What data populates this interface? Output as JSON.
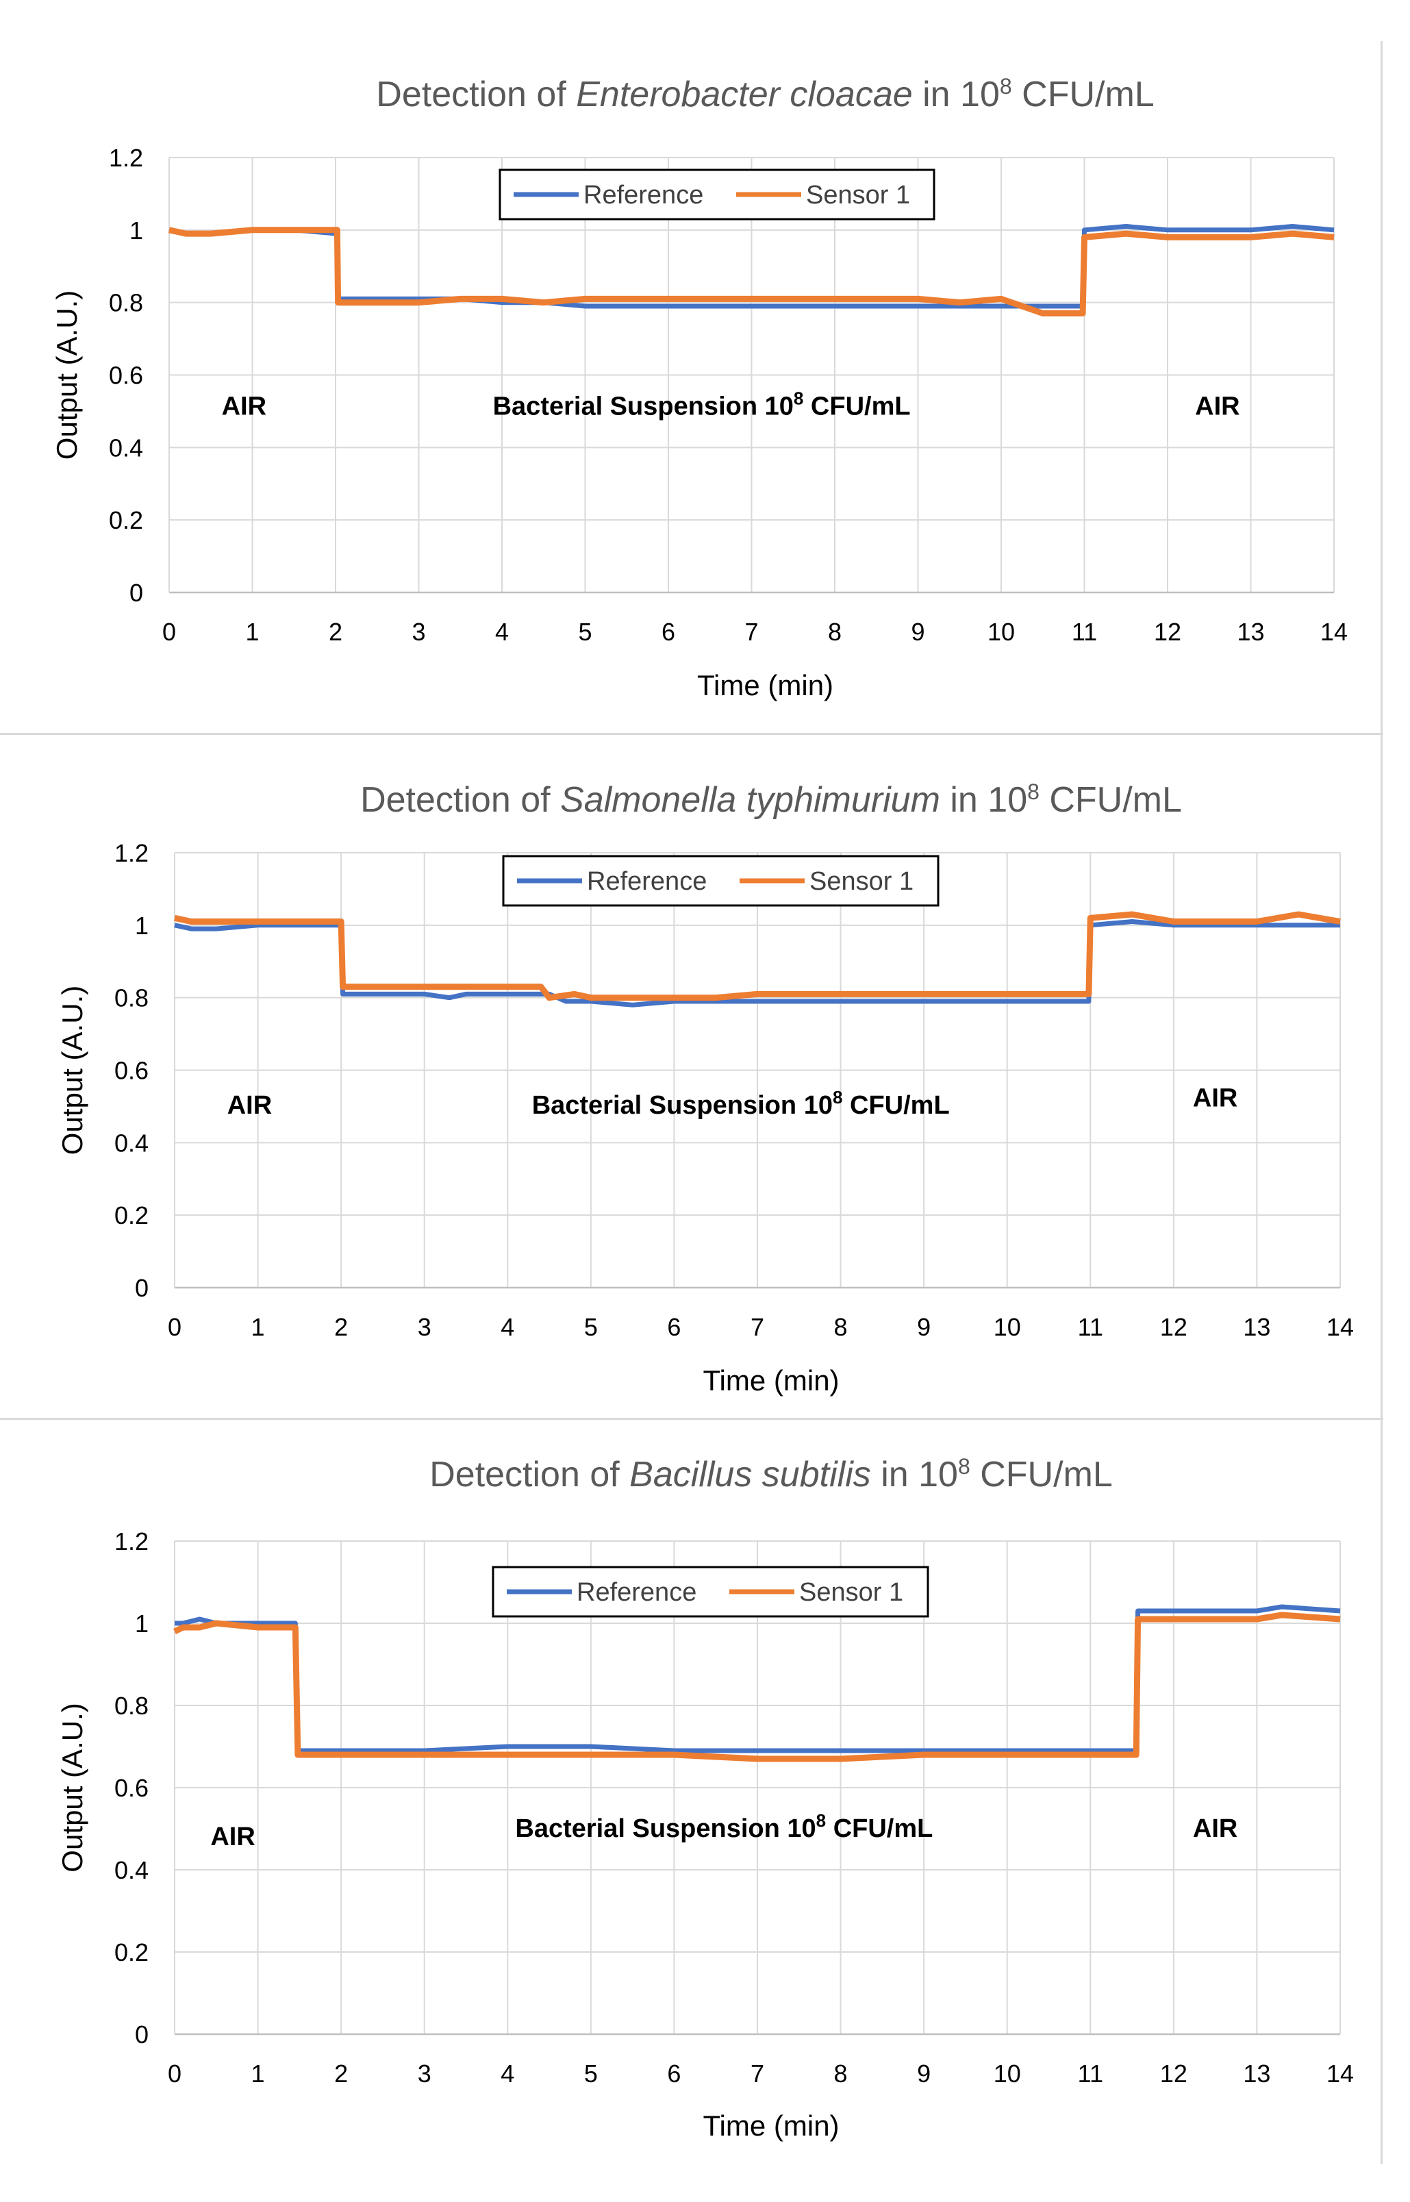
{
  "colors": {
    "reference": "#4472C4",
    "sensor": "#ED7D31",
    "grid": "#d9d9d9",
    "axis": "#bfbfbf"
  },
  "chart_data": [
    {
      "type": "line",
      "title": {
        "prefix": "Detection of ",
        "organism": "Enterobacter cloacae",
        "mid": " in 10",
        "exp": "8",
        "suffix": " CFU/mL"
      },
      "xlabel": "Time (min)",
      "ylabel": "Output (A.U.)",
      "xlim": [
        0,
        14
      ],
      "ylim": [
        0,
        1.2
      ],
      "xticks": [
        0,
        1,
        2,
        3,
        4,
        5,
        6,
        7,
        8,
        9,
        10,
        11,
        12,
        13,
        14
      ],
      "yticks": [
        0,
        0.2,
        0.4,
        0.6,
        0.8,
        1,
        1.2
      ],
      "ytick_labels": [
        "0",
        "0.2",
        "0.4",
        "0.6",
        "0.8",
        "1",
        "1.2"
      ],
      "legend": {
        "position": "top-center",
        "entries": [
          "Reference",
          "Sensor 1"
        ]
      },
      "annotations": [
        {
          "text": "AIR",
          "x": 0.9,
          "y": 0.49
        },
        {
          "base": "Bacterial Suspension 10",
          "exp": "8",
          "suffix": " CFU/mL",
          "x": 6.4,
          "y": 0.49
        },
        {
          "text": "AIR",
          "x": 12.6,
          "y": 0.49
        }
      ],
      "series": [
        {
          "name": "Reference",
          "x": [
            0,
            0.2,
            0.5,
            1,
            1.5,
            2.02,
            2.03,
            2.5,
            3.0,
            3.5,
            4.0,
            4.5,
            5.0,
            5.5,
            6.0,
            6.5,
            7.0,
            7.5,
            8.0,
            8.5,
            9.0,
            9.5,
            10.0,
            10.5,
            10.98,
            11.0,
            11.5,
            12.0,
            12.5,
            13.0,
            13.5,
            14.0
          ],
          "y": [
            1.0,
            0.99,
            0.99,
            1.0,
            1.0,
            0.99,
            0.81,
            0.81,
            0.81,
            0.81,
            0.8,
            0.8,
            0.79,
            0.79,
            0.79,
            0.79,
            0.79,
            0.79,
            0.79,
            0.79,
            0.79,
            0.79,
            0.79,
            0.79,
            0.79,
            1.0,
            1.01,
            1.0,
            1.0,
            1.0,
            1.01,
            1.0
          ]
        },
        {
          "name": "Sensor 1",
          "x": [
            0,
            0.2,
            0.5,
            1,
            1.5,
            2.02,
            2.03,
            2.5,
            3.0,
            3.5,
            4.0,
            4.5,
            5.0,
            5.5,
            6.0,
            6.5,
            7.0,
            7.5,
            8.0,
            8.5,
            9.0,
            9.5,
            10.0,
            10.5,
            10.98,
            11.0,
            11.5,
            12.0,
            12.5,
            13.0,
            13.5,
            14.0
          ],
          "y": [
            1.0,
            0.99,
            0.99,
            1.0,
            1.0,
            1.0,
            0.8,
            0.8,
            0.8,
            0.81,
            0.81,
            0.8,
            0.81,
            0.81,
            0.81,
            0.81,
            0.81,
            0.81,
            0.81,
            0.81,
            0.81,
            0.8,
            0.81,
            0.77,
            0.77,
            0.98,
            0.99,
            0.98,
            0.98,
            0.98,
            0.99,
            0.98
          ]
        }
      ]
    },
    {
      "type": "line",
      "title": {
        "prefix": "Detection of ",
        "organism": "Salmonella typhimurium",
        "mid": " in 10",
        "exp": "8",
        "suffix": " CFU/mL"
      },
      "xlabel": "Time (min)",
      "ylabel": "Output (A.U.)",
      "xlim": [
        0,
        14
      ],
      "ylim": [
        0,
        1.2
      ],
      "xticks": [
        0,
        1,
        2,
        3,
        4,
        5,
        6,
        7,
        8,
        9,
        10,
        11,
        12,
        13,
        14
      ],
      "yticks": [
        0,
        0.2,
        0.4,
        0.6,
        0.8,
        1,
        1.2
      ],
      "ytick_labels": [
        "0",
        "0.2",
        "0.4",
        "0.6",
        "0.8",
        "1",
        "1.2"
      ],
      "legend": {
        "position": "top-center",
        "entries": [
          "Reference",
          "Sensor 1"
        ]
      },
      "annotations": [
        {
          "text": "AIR",
          "x": 0.9,
          "y": 0.48
        },
        {
          "base": "Bacterial Suspension 10",
          "exp": "8",
          "suffix": " CFU/mL",
          "x": 6.8,
          "y": 0.48
        },
        {
          "text": "AIR",
          "x": 12.5,
          "y": 0.5
        }
      ],
      "series": [
        {
          "name": "Reference",
          "x": [
            0,
            0.2,
            0.5,
            1,
            1.5,
            2.0,
            2.02,
            2.5,
            3.0,
            3.3,
            3.5,
            4.0,
            4.5,
            4.7,
            5.0,
            5.5,
            6.0,
            6.5,
            7.0,
            7.5,
            8.0,
            8.5,
            9.0,
            9.5,
            10.0,
            10.5,
            10.98,
            11.0,
            11.5,
            12.0,
            12.5,
            13.0,
            13.5,
            14.0
          ],
          "y": [
            1.0,
            0.99,
            0.99,
            1.0,
            1.0,
            1.0,
            0.81,
            0.81,
            0.81,
            0.8,
            0.81,
            0.81,
            0.81,
            0.79,
            0.79,
            0.78,
            0.79,
            0.79,
            0.79,
            0.79,
            0.79,
            0.79,
            0.79,
            0.79,
            0.79,
            0.79,
            0.79,
            1.0,
            1.01,
            1.0,
            1.0,
            1.0,
            1.0,
            1.0
          ]
        },
        {
          "name": "Sensor 1",
          "x": [
            0,
            0.2,
            0.5,
            1,
            1.5,
            2.0,
            2.02,
            2.5,
            3.0,
            3.5,
            4.0,
            4.4,
            4.5,
            4.8,
            5.0,
            5.5,
            6.0,
            6.5,
            7.0,
            7.5,
            8.0,
            8.5,
            9.0,
            9.5,
            10.0,
            10.5,
            10.98,
            11.0,
            11.5,
            12.0,
            12.5,
            13.0,
            13.5,
            14.0
          ],
          "y": [
            1.02,
            1.01,
            1.01,
            1.01,
            1.01,
            1.01,
            0.83,
            0.83,
            0.83,
            0.83,
            0.83,
            0.83,
            0.8,
            0.81,
            0.8,
            0.8,
            0.8,
            0.8,
            0.81,
            0.81,
            0.81,
            0.81,
            0.81,
            0.81,
            0.81,
            0.81,
            0.81,
            1.02,
            1.03,
            1.01,
            1.01,
            1.01,
            1.03,
            1.01
          ]
        }
      ]
    },
    {
      "type": "line",
      "title": {
        "prefix": "Detection of ",
        "organism": "Bacillus subtilis",
        "mid": " in 10",
        "exp": "8",
        "suffix": " CFU/mL"
      },
      "xlabel": "Time (min)",
      "ylabel": "Output (A.U.)",
      "xlim": [
        0,
        14
      ],
      "ylim": [
        0,
        1.2
      ],
      "xticks": [
        0,
        1,
        2,
        3,
        4,
        5,
        6,
        7,
        8,
        9,
        10,
        11,
        12,
        13,
        14
      ],
      "yticks": [
        0,
        0.2,
        0.4,
        0.6,
        0.8,
        1,
        1.2
      ],
      "ytick_labels": [
        "0",
        "0.2",
        "0.4",
        "0.6",
        "0.8",
        "1",
        "1.2"
      ],
      "legend": {
        "position": "top-center",
        "entries": [
          "Reference",
          "Sensor 1"
        ]
      },
      "annotations": [
        {
          "text": "AIR",
          "x": 0.7,
          "y": 0.46
        },
        {
          "base": "Bacterial Suspension 10",
          "exp": "8",
          "suffix": " CFU/mL",
          "x": 6.6,
          "y": 0.48
        },
        {
          "text": "AIR",
          "x": 12.5,
          "y": 0.48
        }
      ],
      "series": [
        {
          "name": "Reference",
          "x": [
            0,
            0.1,
            0.3,
            0.5,
            1.0,
            1.45,
            1.48,
            2.0,
            3.0,
            4.0,
            5.0,
            6.0,
            7.0,
            8.0,
            9.0,
            10.0,
            11.0,
            11.55,
            11.57,
            12.0,
            13.0,
            13.3,
            14.0
          ],
          "y": [
            1.0,
            1.0,
            1.01,
            1.0,
            1.0,
            1.0,
            0.69,
            0.69,
            0.69,
            0.7,
            0.7,
            0.69,
            0.69,
            0.69,
            0.69,
            0.69,
            0.69,
            0.69,
            1.03,
            1.03,
            1.03,
            1.04,
            1.03
          ]
        },
        {
          "name": "Sensor 1",
          "x": [
            0,
            0.1,
            0.3,
            0.5,
            1.0,
            1.45,
            1.48,
            2.0,
            3.0,
            4.0,
            5.0,
            6.0,
            7.0,
            8.0,
            9.0,
            10.0,
            11.0,
            11.55,
            11.57,
            12.0,
            13.0,
            13.3,
            14.0
          ],
          "y": [
            0.98,
            0.99,
            0.99,
            1.0,
            0.99,
            0.99,
            0.68,
            0.68,
            0.68,
            0.68,
            0.68,
            0.68,
            0.67,
            0.67,
            0.68,
            0.68,
            0.68,
            0.68,
            1.01,
            1.01,
            1.01,
            1.02,
            1.01
          ]
        }
      ]
    }
  ]
}
